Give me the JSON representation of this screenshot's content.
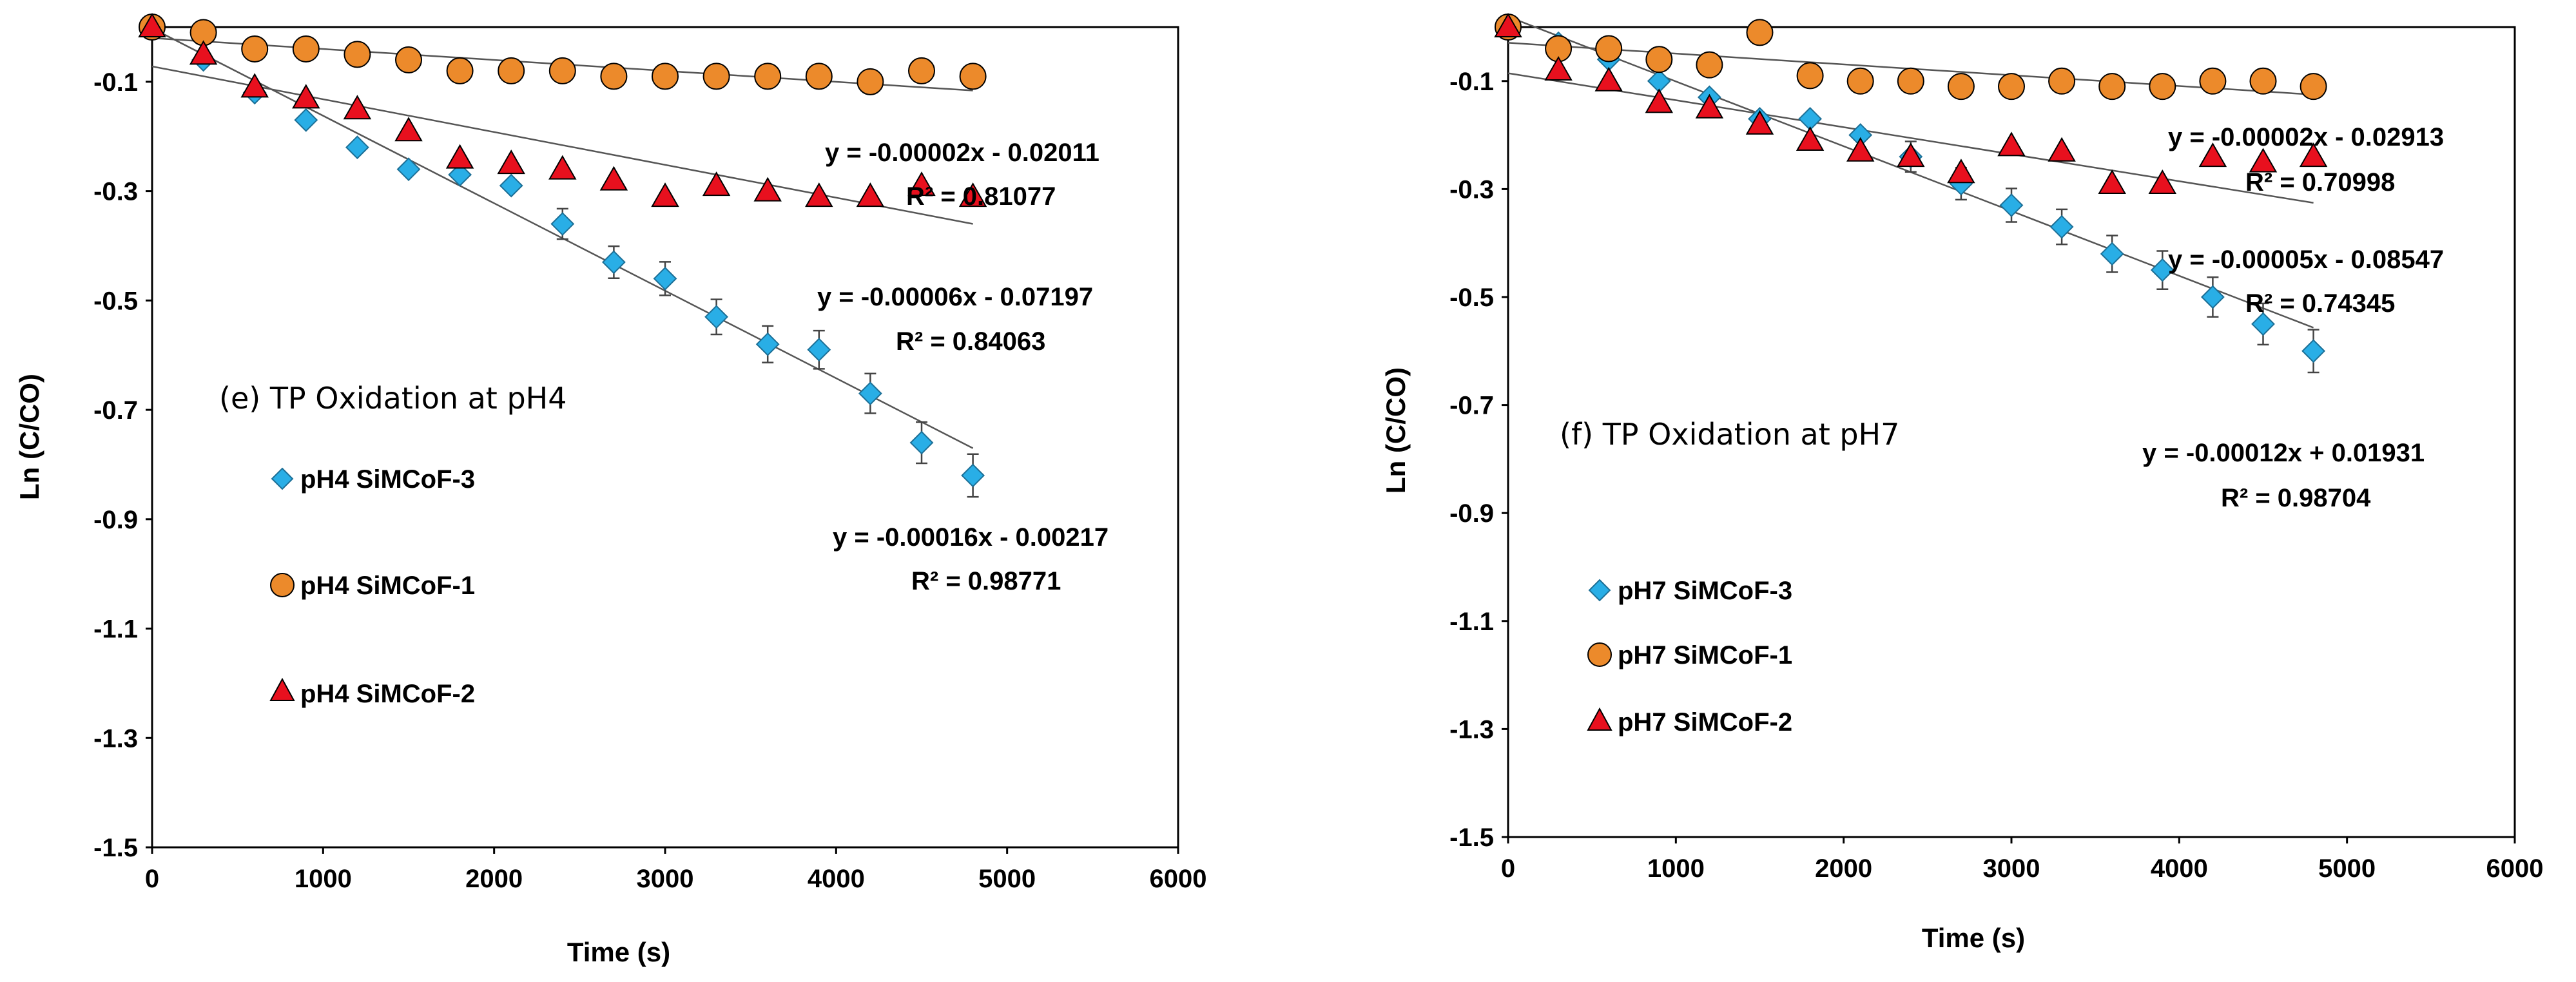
{
  "chart_data": [
    {
      "type": "scatter",
      "title": "(e) TP Oxidation at pH4",
      "xlabel": "Time (s)",
      "ylabel": "Ln (C/CO)",
      "xlim": [
        0,
        6000
      ],
      "ylim": [
        -1.5,
        0
      ],
      "x_ticks": [
        "0",
        "1000",
        "2000",
        "3000",
        "4000",
        "5000",
        "6000"
      ],
      "y_ticks": [
        "-0.1",
        "-0.3",
        "-0.5",
        "-0.7",
        "-0.9",
        "-1.1",
        "-1.3",
        "-1.5"
      ],
      "x_tick_values": [
        0,
        1000,
        2000,
        3000,
        4000,
        5000,
        6000
      ],
      "y_tick_values": [
        -0.1,
        -0.3,
        -0.5,
        -0.7,
        -0.9,
        -1.1,
        -1.3,
        -1.5
      ],
      "series": [
        {
          "name": "pH4 SiMCoF-3",
          "marker": "diamond",
          "color": "#29aee6",
          "x": [
            0,
            300,
            600,
            900,
            1200,
            1500,
            1800,
            2100,
            2400,
            2700,
            3000,
            3300,
            3600,
            3900,
            4200,
            4500,
            4800
          ],
          "y": [
            0,
            -0.06,
            -0.12,
            -0.17,
            -0.22,
            -0.26,
            -0.27,
            -0.29,
            -0.36,
            -0.43,
            -0.46,
            -0.53,
            -0.58,
            -0.59,
            -0.67,
            -0.76,
            -0.82
          ],
          "error_bars": true,
          "trendline": {
            "slope": -0.00016,
            "intercept": -0.00217,
            "x_range": [
              0,
              4800
            ]
          },
          "equation": "y = -0.00016x - 0.00217",
          "r2": "R² = 0.98771"
        },
        {
          "name": "pH4 SiMCoF-1",
          "marker": "circle",
          "color": "#ec8a2b",
          "x": [
            0,
            300,
            600,
            900,
            1200,
            1500,
            1800,
            2100,
            2400,
            2700,
            3000,
            3300,
            3600,
            3900,
            4200,
            4500,
            4800
          ],
          "y": [
            0,
            -0.01,
            -0.04,
            -0.04,
            -0.05,
            -0.06,
            -0.08,
            -0.08,
            -0.08,
            -0.09,
            -0.09,
            -0.09,
            -0.09,
            -0.09,
            -0.1,
            -0.08,
            -0.09
          ],
          "error_bars": false,
          "trendline": {
            "slope": -2e-05,
            "intercept": -0.02011,
            "x_range": [
              0,
              4800
            ]
          },
          "equation": "y = -0.00002x - 0.02011",
          "r2": "R² = 0.81077"
        },
        {
          "name": "pH4 SiMCoF-2",
          "marker": "triangle",
          "color": "#e8101e",
          "x": [
            0,
            300,
            600,
            900,
            1200,
            1500,
            1800,
            2100,
            2400,
            2700,
            3000,
            3300,
            3600,
            3900,
            4200,
            4500,
            4800
          ],
          "y": [
            0,
            -0.05,
            -0.11,
            -0.13,
            -0.15,
            -0.19,
            -0.24,
            -0.25,
            -0.26,
            -0.28,
            -0.31,
            -0.29,
            -0.3,
            -0.31,
            -0.31,
            -0.29,
            -0.31
          ],
          "error_bars": false,
          "trendline": {
            "slope": -6e-05,
            "intercept": -0.07197,
            "x_range": [
              0,
              4800
            ]
          },
          "equation": "y = -0.00006x - 0.07197",
          "r2": "R² = 0.84063"
        }
      ],
      "legend": [
        "pH4 SiMCoF-3",
        "pH4 SiMCoF-1",
        "pH4 SiMCoF-2"
      ]
    },
    {
      "type": "scatter",
      "title": "(f) TP Oxidation at pH7",
      "xlabel": "Time (s)",
      "ylabel": "Ln (C/CO)",
      "xlim": [
        0,
        6000
      ],
      "ylim": [
        -1.5,
        0
      ],
      "x_ticks": [
        "0",
        "1000",
        "2000",
        "3000",
        "4000",
        "5000",
        "6000"
      ],
      "y_ticks": [
        "-0.1",
        "-0.3",
        "-0.5",
        "-0.7",
        "-0.9",
        "-1.1",
        "-1.3",
        "-1.5"
      ],
      "x_tick_values": [
        0,
        1000,
        2000,
        3000,
        4000,
        5000,
        6000
      ],
      "y_tick_values": [
        -0.1,
        -0.3,
        -0.5,
        -0.7,
        -0.9,
        -1.1,
        -1.3,
        -1.5
      ],
      "series": [
        {
          "name": "pH7 SiMCoF-3",
          "marker": "diamond",
          "color": "#29aee6",
          "x": [
            0,
            300,
            600,
            900,
            1200,
            1500,
            1800,
            2100,
            2400,
            2700,
            3000,
            3300,
            3600,
            3900,
            4200,
            4500,
            4800
          ],
          "y": [
            0,
            -0.03,
            -0.06,
            -0.1,
            -0.13,
            -0.17,
            -0.17,
            -0.2,
            -0.24,
            -0.29,
            -0.33,
            -0.37,
            -0.42,
            -0.45,
            -0.5,
            -0.55,
            -0.6
          ],
          "error_bars": true,
          "trendline": {
            "slope": -0.00012,
            "intercept": 0.01931,
            "x_range": [
              0,
              4800
            ]
          },
          "equation": "y = -0.00012x + 0.01931",
          "r2": "R² = 0.98704"
        },
        {
          "name": "pH7 SiMCoF-1",
          "marker": "circle",
          "color": "#ec8a2b",
          "x": [
            0,
            300,
            600,
            900,
            1200,
            1500,
            1800,
            2100,
            2400,
            2700,
            3000,
            3300,
            3600,
            3900,
            4200,
            4500,
            4800
          ],
          "y": [
            0,
            -0.04,
            -0.04,
            -0.06,
            -0.07,
            -0.01,
            -0.09,
            -0.1,
            -0.1,
            -0.11,
            -0.11,
            -0.1,
            -0.11,
            -0.11,
            -0.1,
            -0.1,
            -0.11
          ],
          "error_bars": false,
          "trendline": {
            "slope": -2e-05,
            "intercept": -0.02913,
            "x_range": [
              0,
              4800
            ]
          },
          "equation": "y = -0.00002x - 0.02913",
          "r2": "R² = 0.70998"
        },
        {
          "name": "pH7 SiMCoF-2",
          "marker": "triangle",
          "color": "#e8101e",
          "x": [
            0,
            300,
            600,
            900,
            1200,
            1500,
            1800,
            2100,
            2400,
            2700,
            3000,
            3300,
            3600,
            3900,
            4200,
            4500,
            4800
          ],
          "y": [
            0,
            -0.08,
            -0.1,
            -0.14,
            -0.15,
            -0.18,
            -0.21,
            -0.23,
            -0.24,
            -0.27,
            -0.22,
            -0.23,
            -0.29,
            -0.29,
            -0.24,
            -0.25,
            -0.24
          ],
          "error_bars": false,
          "trendline": {
            "slope": -5e-05,
            "intercept": -0.08547,
            "x_range": [
              0,
              4800
            ]
          },
          "equation": "y = -0.00005x - 0.08547",
          "r2": "R² = 0.74345"
        }
      ],
      "legend": [
        "pH7 SiMCoF-3",
        "pH7 SiMCoF-1",
        "pH7 SiMCoF-2"
      ]
    }
  ]
}
